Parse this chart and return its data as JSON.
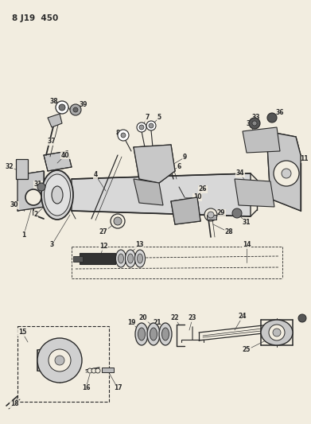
{
  "title": "8 J19  450",
  "bg_color": "#f2ede0",
  "line_color": "#2a2a2a",
  "fig_w": 3.91,
  "fig_h": 5.33,
  "dpi": 100
}
